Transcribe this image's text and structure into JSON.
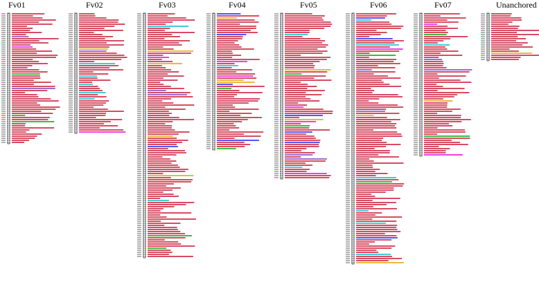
{
  "map": {
    "chromosomes": [
      {
        "id": "chr-fv01",
        "name": "Fv01",
        "min_cm": 0.0,
        "max_cm": 38.2,
        "marker_count": 63
      },
      {
        "id": "chr-fv02",
        "name": "Fv02",
        "min_cm": 0.0,
        "max_cm": 36.5,
        "marker_count": 58
      },
      {
        "id": "chr-fv03",
        "name": "Fv03",
        "min_cm": 0.0,
        "max_cm": 70.3,
        "marker_count": 118
      },
      {
        "id": "chr-fv04",
        "name": "Fv04",
        "min_cm": 0.0,
        "max_cm": 39.1,
        "marker_count": 66
      },
      {
        "id": "chr-fv05",
        "name": "Fv05",
        "min_cm": 0.0,
        "max_cm": 46.4,
        "marker_count": 80
      },
      {
        "id": "chr-fv06",
        "name": "Fv06",
        "min_cm": 0.0,
        "max_cm": 70.8,
        "marker_count": 121
      },
      {
        "id": "chr-fv07",
        "name": "Fv07",
        "min_cm": 0.0,
        "max_cm": 39.6,
        "marker_count": 69
      },
      {
        "id": "chr-unanchored",
        "name": "Unanchored",
        "min_cm": 0.0,
        "max_cm": 14.2,
        "marker_count": 23
      }
    ],
    "colors": {
      "marker_main": "#c8102e",
      "marker_alt": [
        "#1a1aff",
        "#00a000",
        "#e000e0",
        "#00b8c8",
        "#e0a000",
        "#7a3bbd"
      ],
      "chromosome_bar": "#000000",
      "position_text": "#333333"
    }
  }
}
